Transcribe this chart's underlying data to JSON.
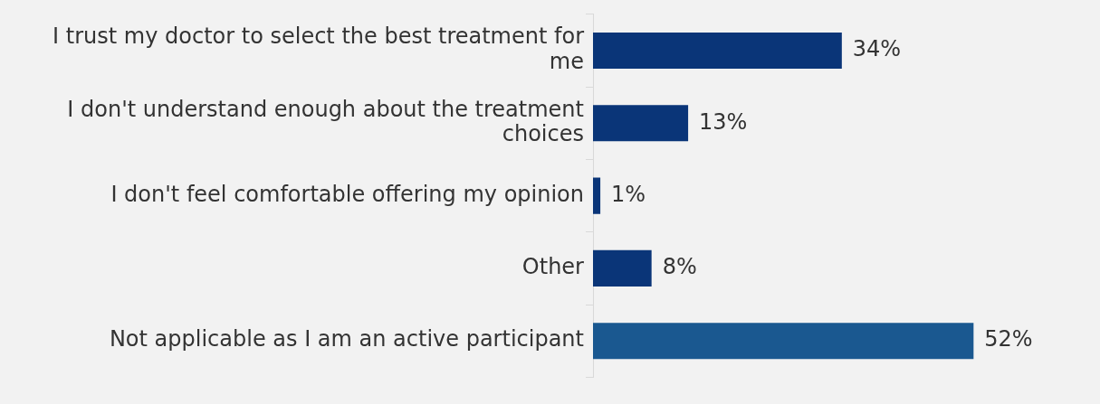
{
  "chart_data": {
    "type": "bar",
    "orientation": "horizontal",
    "categories": [
      "I trust my doctor to select the best treatment for me",
      "I don't understand enough about the treatment choices",
      "I don't feel comfortable offering my opinion",
      "Other",
      "Not applicable as I am an active participant"
    ],
    "values": [
      34,
      13,
      1,
      8,
      52
    ],
    "colors": [
      "#0a3578",
      "#0a3578",
      "#0a3578",
      "#0a3578",
      "#1a5890"
    ],
    "value_labels": [
      "34%",
      "13%",
      "1%",
      "8%",
      "52%"
    ],
    "legend": false,
    "tick_labels": "y"
  }
}
